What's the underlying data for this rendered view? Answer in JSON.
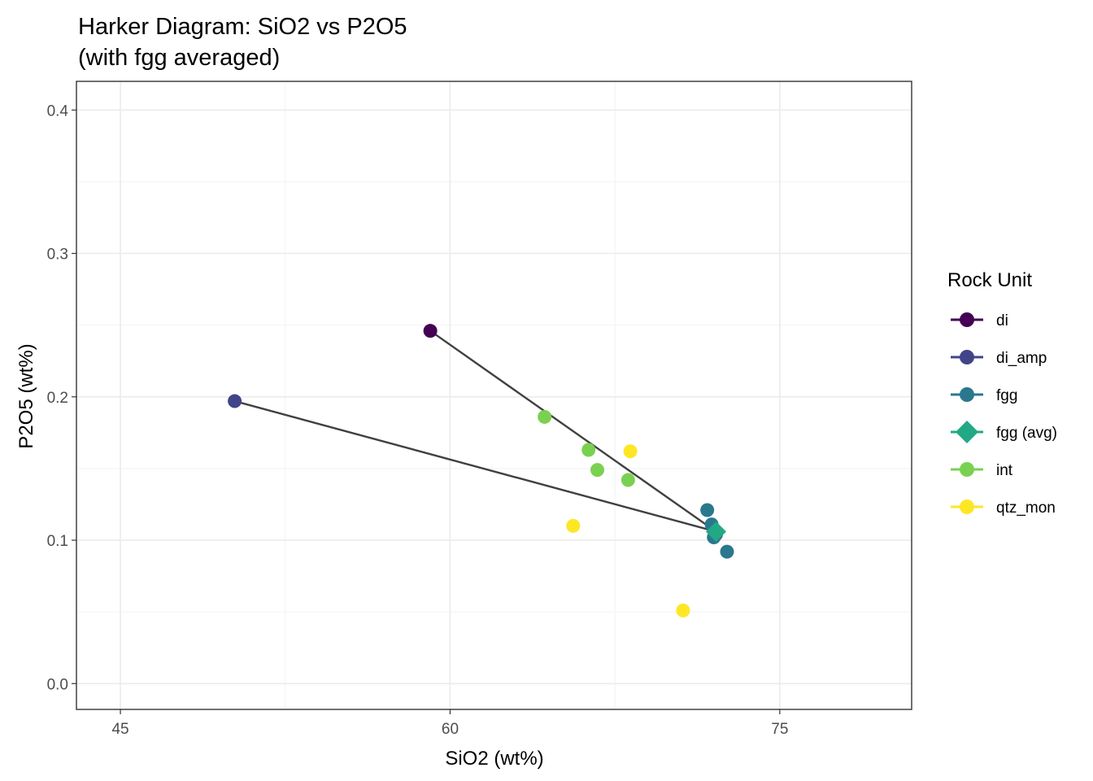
{
  "chart_data": {
    "type": "scatter",
    "title_lines": [
      "Harker Diagram: SiO2 vs P2O5",
      "(with fgg averaged)"
    ],
    "xlabel": "SiO2 (wt%)",
    "ylabel": "P2O5 (wt%)",
    "xlim": [
      43.0,
      81.0
    ],
    "ylim": [
      -0.018,
      0.42
    ],
    "x_ticks": [
      45,
      60,
      75
    ],
    "x_tick_labels": [
      "45",
      "60",
      "75"
    ],
    "x_minor_ticks": [
      52.5,
      67.5
    ],
    "y_ticks": [
      0.0,
      0.1,
      0.2,
      0.3,
      0.4
    ],
    "y_tick_labels": [
      "0.0",
      "0.1",
      "0.2",
      "0.3",
      "0.4"
    ],
    "y_minor_ticks": [
      0.05,
      0.15,
      0.25,
      0.35
    ],
    "grid": true,
    "legend_position": "right",
    "legend_title": "Rock Unit",
    "series": [
      {
        "name": "di",
        "color": "#440154",
        "marker": "circle",
        "points": [
          [
            59.1,
            0.246
          ]
        ]
      },
      {
        "name": "di_amp",
        "color": "#414487",
        "marker": "circle",
        "points": [
          [
            50.2,
            0.197
          ]
        ]
      },
      {
        "name": "fgg",
        "color": "#2A788E",
        "marker": "circle",
        "points": [
          [
            71.7,
            0.121
          ],
          [
            71.9,
            0.111
          ],
          [
            72.0,
            0.102
          ],
          [
            72.1,
            0.104
          ],
          [
            72.6,
            0.092
          ]
        ]
      },
      {
        "name": "fgg (avg)",
        "color": "#22A884",
        "marker": "diamond",
        "points": [
          [
            72.1,
            0.106
          ]
        ]
      },
      {
        "name": "int",
        "color": "#7AD151",
        "marker": "circle",
        "points": [
          [
            64.3,
            0.186
          ],
          [
            66.3,
            0.163
          ],
          [
            66.7,
            0.149
          ],
          [
            68.1,
            0.142
          ]
        ]
      },
      {
        "name": "qtz_mon",
        "color": "#FDE725",
        "marker": "circle",
        "points": [
          [
            68.2,
            0.162
          ],
          [
            65.6,
            0.11
          ],
          [
            70.6,
            0.051
          ]
        ]
      }
    ],
    "connector_lines": [
      {
        "from": [
          59.1,
          0.246
        ],
        "to": [
          72.1,
          0.106
        ],
        "color": "#404040"
      },
      {
        "from": [
          50.2,
          0.197
        ],
        "to": [
          72.1,
          0.106
        ],
        "color": "#404040"
      }
    ]
  }
}
